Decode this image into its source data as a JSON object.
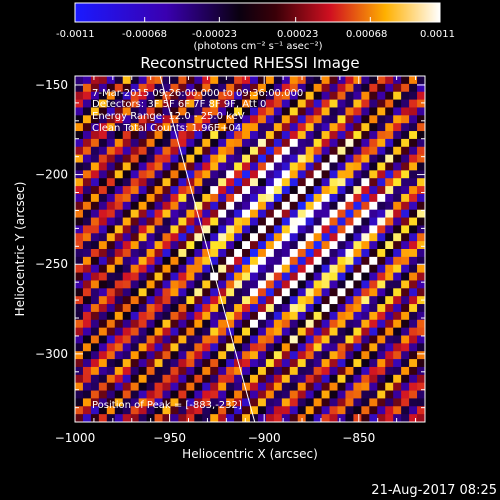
{
  "colorbar": {
    "ticks": [
      "-0.0011",
      "-0.00068",
      "-0.00023",
      "0.00023",
      "0.00068",
      "0.0011"
    ],
    "tick_values": [
      -0.0011,
      -0.00068,
      -0.00023,
      0.00023,
      0.00068,
      0.0011
    ],
    "range": [
      -0.0011,
      0.0011
    ],
    "unit_label": "(photons cm⁻² s⁻¹ asec⁻²)"
  },
  "chart_data": {
    "type": "heatmap",
    "title": "Reconstructed RHESSI Image",
    "xlabel": "Heliocentric X (arcsec)",
    "ylabel": "Heliocentric Y (arcsec)",
    "xlim": [
      -1000,
      -815
    ],
    "ylim": [
      -338,
      -145
    ],
    "x_ticks": [
      -1000,
      -950,
      -900,
      -850
    ],
    "y_ticks": [
      -150,
      -200,
      -250,
      -300
    ],
    "x_tick_labels": [
      "−1000",
      "−950",
      "−900",
      "−850"
    ],
    "y_tick_labels": [
      "−150",
      "−200",
      "−250",
      "−300"
    ],
    "peak": [
      -883,
      -232
    ],
    "limb_line": [
      [
        -955,
        -145
      ],
      [
        -905,
        -338
      ]
    ],
    "pattern": "diagonal interference fringes",
    "colormap": "blue-black-red-yellow-white"
  },
  "annotations": {
    "time_range": "7-Mar-2015 09:26:00.000 to 09:36:00.000",
    "detectors": "Detectors: 3F 5F 6F 7F 8F 9F, Att 0",
    "energy": "Energy Range: 12.0 - 25.0 keV",
    "method": "Clean     Total Counts: 1.96E+04",
    "peak": "Position of Peak = [-883,-232]"
  },
  "footer": {
    "date": "21-Aug-2017 08:25"
  }
}
